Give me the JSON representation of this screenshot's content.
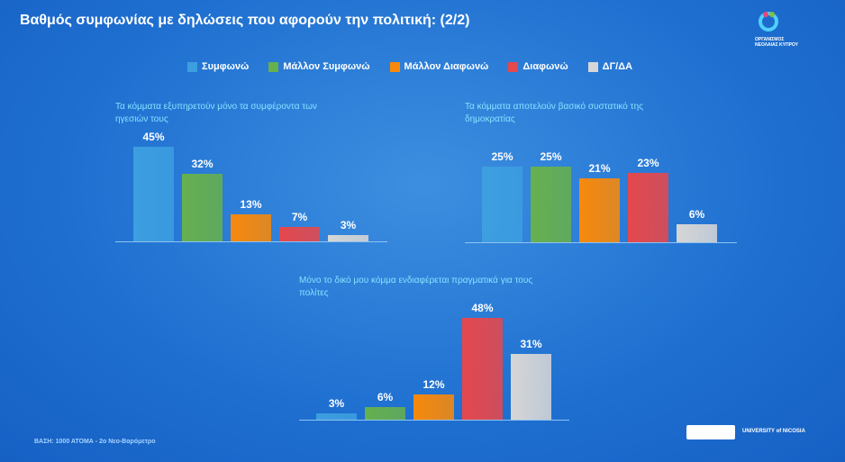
{
  "header": {
    "title": "Βαθμός συμφωνίας με δηλώσεις που αφορούν την πολιτική: (2/2)",
    "logo_text": "ΟΡΓΑΝΙΣΜΟΣ ΝΕΟΛΑΙΑΣ ΚΥΠΡΟΥ"
  },
  "legend": [
    {
      "name": "Συμφωνώ",
      "color": "#3d9ee0"
    },
    {
      "name": "Μάλλον Συμφωνώ",
      "color": "#66b04e"
    },
    {
      "name": "Μάλλον Διαφωνώ",
      "color": "#f7890c"
    },
    {
      "name": "Διαφωνώ",
      "color": "#e5484d"
    },
    {
      "name": "ΔΓ/ΔΑ",
      "color": "#d6d6d6"
    }
  ],
  "chart_data": [
    {
      "type": "bar",
      "title": "Τα κόμματα εξυπηρετούν μόνο τα συμφέροντα των ηγεσιών τους",
      "values": [
        45,
        32,
        13,
        7,
        3
      ],
      "value_labels": [
        "45%",
        "32%",
        "13%",
        "7%",
        "3%"
      ]
    },
    {
      "type": "bar",
      "title": "Τα κόμματα αποτελούν βασικό συστατικό της δημοκρατίας",
      "values": [
        25,
        25,
        21,
        23,
        6
      ],
      "value_labels": [
        "25%",
        "25%",
        "21%",
        "23%",
        "6%"
      ]
    },
    {
      "type": "bar",
      "title": "Μόνο το δικό μου κόμμα ενδιαφέρεται πραγματικά για τους πολίτες",
      "values": [
        3,
        6,
        12,
        48,
        31
      ],
      "value_labels": [
        "3%",
        "6%",
        "12%",
        "48%",
        "31%"
      ]
    }
  ],
  "footer": {
    "base": "ΒΑΣΗ: 1000 ΑΤΟΜΑ - 2ο Νεο-Βαρόμετρο",
    "university": "UNIVERSITY of NICOSIA"
  }
}
